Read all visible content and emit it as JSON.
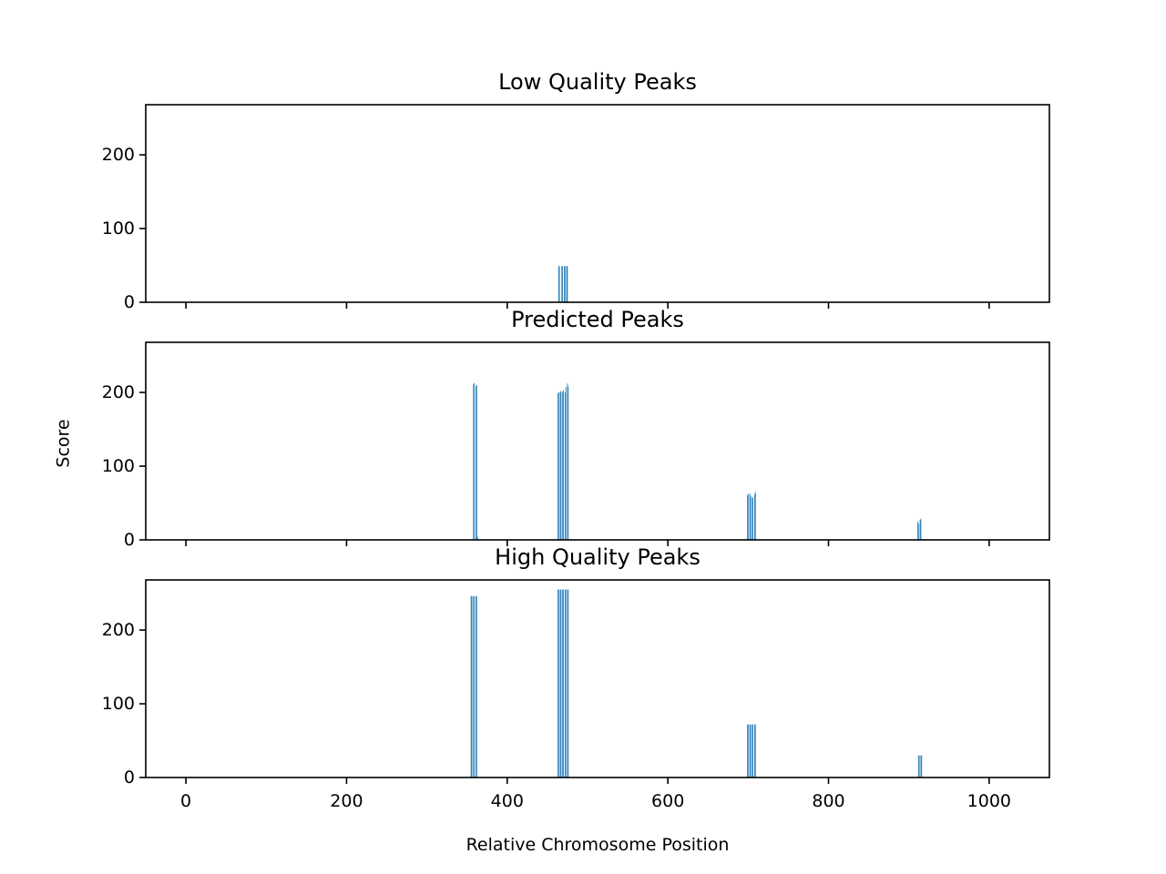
{
  "figure": {
    "ylabel": "Score",
    "xlabel": "Relative Chromosome Position",
    "bar_color": "#1f77b4"
  },
  "chart_data": [
    {
      "type": "bar",
      "title": "Low Quality Peaks",
      "xlim": [
        -50,
        1075
      ],
      "ylim": [
        0,
        268
      ],
      "xticks": [
        0,
        200,
        400,
        600,
        800,
        1000
      ],
      "yticks": [
        0,
        100,
        200
      ],
      "show_xticklabels": false,
      "bars": [
        {
          "x": 464,
          "y": 49
        },
        {
          "x": 465,
          "y": 49
        },
        {
          "x": 468,
          "y": 49
        },
        {
          "x": 469,
          "y": 49
        },
        {
          "x": 471,
          "y": 49
        },
        {
          "x": 472,
          "y": 49
        },
        {
          "x": 474,
          "y": 49
        },
        {
          "x": 475,
          "y": 49
        }
      ]
    },
    {
      "type": "bar",
      "title": "Predicted Peaks",
      "xlim": [
        -50,
        1075
      ],
      "ylim": [
        0,
        268
      ],
      "xticks": [
        0,
        200,
        400,
        600,
        800,
        1000
      ],
      "yticks": [
        0,
        100,
        200
      ],
      "show_xticklabels": false,
      "bars": [
        {
          "x": 358,
          "y": 211
        },
        {
          "x": 359,
          "y": 213
        },
        {
          "x": 361,
          "y": 209
        },
        {
          "x": 362,
          "y": 210
        },
        {
          "x": 363,
          "y": 4
        },
        {
          "x": 463,
          "y": 199
        },
        {
          "x": 464,
          "y": 200
        },
        {
          "x": 466,
          "y": 201
        },
        {
          "x": 467,
          "y": 202
        },
        {
          "x": 469,
          "y": 201
        },
        {
          "x": 470,
          "y": 203
        },
        {
          "x": 472,
          "y": 200
        },
        {
          "x": 473,
          "y": 207
        },
        {
          "x": 475,
          "y": 212
        },
        {
          "x": 476,
          "y": 208
        },
        {
          "x": 699,
          "y": 61
        },
        {
          "x": 700,
          "y": 62
        },
        {
          "x": 702,
          "y": 63
        },
        {
          "x": 703,
          "y": 60
        },
        {
          "x": 705,
          "y": 58
        },
        {
          "x": 706,
          "y": 57
        },
        {
          "x": 708,
          "y": 62
        },
        {
          "x": 709,
          "y": 65
        },
        {
          "x": 911,
          "y": 25
        },
        {
          "x": 912,
          "y": 22
        },
        {
          "x": 914,
          "y": 27
        },
        {
          "x": 915,
          "y": 29
        }
      ]
    },
    {
      "type": "bar",
      "title": "High Quality Peaks",
      "xlim": [
        -50,
        1075
      ],
      "ylim": [
        0,
        268
      ],
      "xticks": [
        0,
        200,
        400,
        600,
        800,
        1000
      ],
      "yticks": [
        0,
        100,
        200
      ],
      "show_xticklabels": true,
      "bars": [
        {
          "x": 355,
          "y": 246
        },
        {
          "x": 356,
          "y": 246
        },
        {
          "x": 358,
          "y": 246
        },
        {
          "x": 359,
          "y": 246
        },
        {
          "x": 361,
          "y": 246
        },
        {
          "x": 362,
          "y": 246
        },
        {
          "x": 463,
          "y": 255
        },
        {
          "x": 464,
          "y": 255
        },
        {
          "x": 466,
          "y": 255
        },
        {
          "x": 467,
          "y": 255
        },
        {
          "x": 469,
          "y": 255
        },
        {
          "x": 470,
          "y": 255
        },
        {
          "x": 472,
          "y": 255
        },
        {
          "x": 473,
          "y": 255
        },
        {
          "x": 475,
          "y": 255
        },
        {
          "x": 476,
          "y": 255
        },
        {
          "x": 699,
          "y": 72
        },
        {
          "x": 700,
          "y": 72
        },
        {
          "x": 702,
          "y": 72
        },
        {
          "x": 703,
          "y": 72
        },
        {
          "x": 705,
          "y": 72
        },
        {
          "x": 706,
          "y": 72
        },
        {
          "x": 708,
          "y": 72
        },
        {
          "x": 709,
          "y": 72
        },
        {
          "x": 912,
          "y": 30
        },
        {
          "x": 913,
          "y": 30
        },
        {
          "x": 915,
          "y": 30
        },
        {
          "x": 916,
          "y": 30
        }
      ]
    }
  ]
}
